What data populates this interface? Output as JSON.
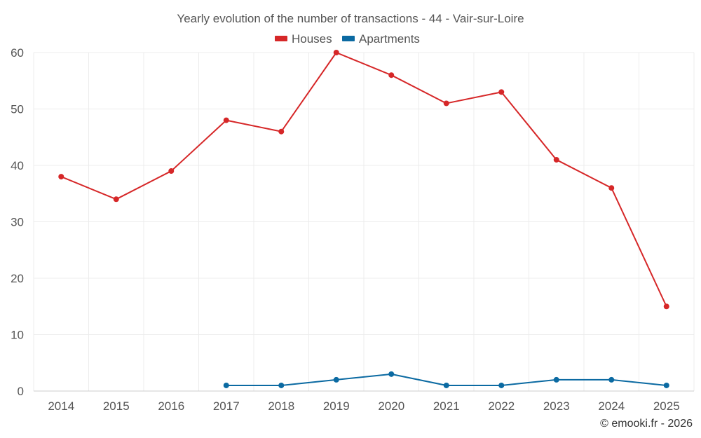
{
  "chart_data": {
    "type": "line",
    "title": "Yearly evolution of the number of transactions - 44 - Vair-sur-Loire",
    "categories": [
      "2014",
      "2015",
      "2016",
      "2017",
      "2018",
      "2019",
      "2020",
      "2021",
      "2022",
      "2023",
      "2024",
      "2025"
    ],
    "series": [
      {
        "name": "Houses",
        "color": "#d62728",
        "values": [
          38,
          34,
          39,
          48,
          46,
          60,
          56,
          51,
          53,
          41,
          36,
          15
        ]
      },
      {
        "name": "Apartments",
        "color": "#0b6aa2",
        "values": [
          null,
          null,
          null,
          1,
          1,
          2,
          3,
          1,
          1,
          2,
          2,
          1
        ]
      }
    ],
    "ylim": [
      0,
      60
    ],
    "yticks": [
      0,
      10,
      20,
      30,
      40,
      50,
      60
    ],
    "xlabel": "",
    "ylabel": "",
    "grid": true,
    "legend": "top-center"
  },
  "credit": "© emooki.fr - 2026"
}
